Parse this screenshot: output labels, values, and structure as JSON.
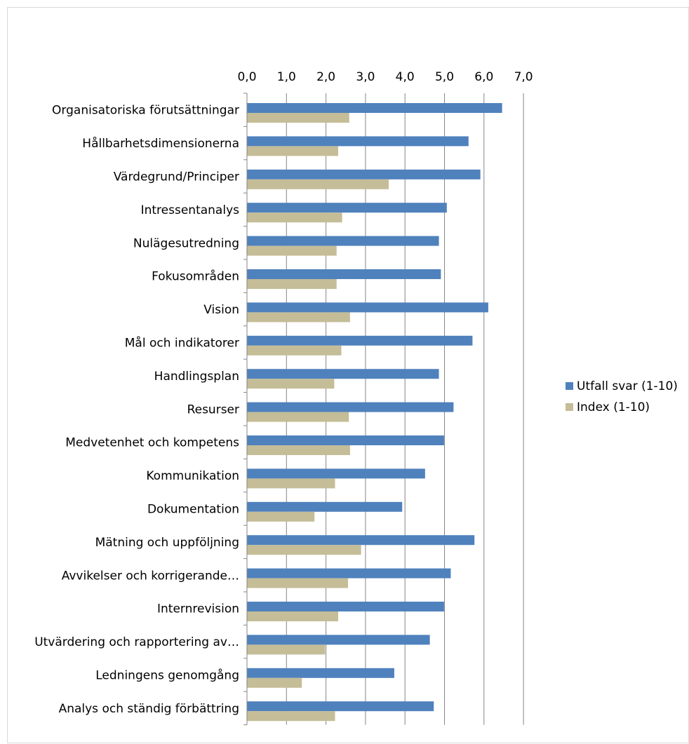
{
  "chart_data": {
    "type": "bar",
    "orientation": "horizontal",
    "categories": [
      "Organisatoriska förutsättningar",
      "Hållbarhetsdimensionerna",
      "Värdegrund/Principer",
      "Intressentanalys",
      "Nulägesutredning",
      "Fokusområden",
      "Vision",
      "Mål och indikatorer",
      "Handlingsplan",
      "Resurser",
      "Medvetenhet och kompetens",
      "Kommunikation",
      "Dokumentation",
      "Mätning och uppföljning",
      "Avvikelser och korrigerande…",
      "Internrevision",
      "Utvärdering och rapportering av…",
      "Ledningens genomgång",
      "Analys och ständig förbättring"
    ],
    "series": [
      {
        "name": "Utfall svar (1-10)",
        "color": "#4f81bd",
        "values": [
          6.45,
          5.6,
          5.9,
          5.05,
          4.85,
          4.9,
          6.1,
          5.7,
          4.85,
          5.22,
          4.98,
          4.5,
          3.92,
          5.75,
          5.15,
          4.98,
          4.62,
          3.72,
          4.72
        ]
      },
      {
        "name": "Index (1-10)",
        "color": "#c4bd97",
        "values": [
          2.58,
          2.3,
          3.58,
          2.4,
          2.26,
          2.26,
          2.6,
          2.38,
          2.2,
          2.57,
          2.6,
          2.22,
          1.7,
          2.88,
          2.55,
          2.3,
          1.97,
          1.38,
          2.22
        ]
      }
    ],
    "xlim": [
      0,
      7
    ],
    "xticks": [
      "0,0",
      "1,0",
      "2,0",
      "3,0",
      "4,0",
      "5,0",
      "6,0",
      "7,0"
    ],
    "grid": true,
    "axis_position": "top",
    "legend_position": "right"
  }
}
